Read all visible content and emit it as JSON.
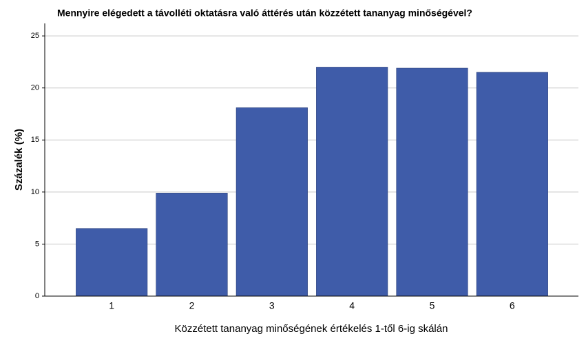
{
  "chart_data": {
    "type": "bar",
    "title": "Mennyire elégedett a távolléti oktatásra való áttérés után közzétett tananyag minőségével?",
    "x_label": "Közzétett tananyag minőségének értékelés 1-től 6-ig skálán",
    "y_label": "Százalék (%)",
    "categories": [
      "1",
      "2",
      "3",
      "4",
      "5",
      "6"
    ],
    "values": [
      6.5,
      9.9,
      18.1,
      22.0,
      21.9,
      21.5
    ],
    "color": "#3f5ca9",
    "ylim": [
      0,
      26.2
    ],
    "yticks": [
      0,
      5,
      10,
      15,
      20,
      25
    ],
    "grid": true
  }
}
